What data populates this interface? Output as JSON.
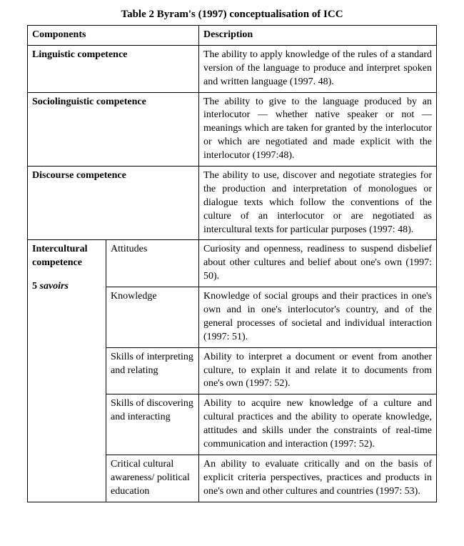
{
  "caption": "Table 2 Byram's (1997) conceptualisation of ICC",
  "headers": {
    "components": "Components",
    "description": "Description"
  },
  "rows": {
    "linguistic": {
      "name": "Linguistic competence",
      "desc": "The ability to apply knowledge of the rules of a standard version of the language to produce and interpret spoken and written language (1997. 48)."
    },
    "sociolinguistic": {
      "name": "Sociolinguistic competence",
      "desc": "The ability to give to the language produced by an interlocutor — whether native speaker or not — meanings which are taken for granted by the interlocutor or which are negotiated and made explicit with the interlocutor (1997:48)."
    },
    "discourse": {
      "name": "Discourse competence",
      "desc": "The ability to use, discover and negotiate strategies for the production and interpretation of monologues or dialogue texts which follow the conventions of the culture of an interlocutor or are negotiated as intercultural texts for particular purposes (1997: 48)."
    },
    "intercultural": {
      "name": "Intercultural competence",
      "five_label_prefix": "5 ",
      "five_label_italic": "savoirs",
      "items": {
        "attitudes": {
          "label": "Attitudes",
          "desc": "Curiosity and openness, readiness to suspend disbelief about other cultures and belief about one's own (1997: 50)."
        },
        "knowledge": {
          "label": "Knowledge",
          "desc": "Knowledge of social groups and their practices in one's own and in one's interlocutor's country, and of the general processes of societal and individual interaction (1997: 51)."
        },
        "interpreting": {
          "label": "Skills of interpreting and relating",
          "desc": "Ability to interpret a document or event from another culture, to explain it and relate it to documents from one's own (1997: 52)."
        },
        "discovering": {
          "label": "Skills of discovering and interacting",
          "desc": "Ability to acquire new knowledge of a culture and cultural practices and the ability to operate knowledge, attitudes and skills under the constraints of real-time communication and interaction (1997: 52)."
        },
        "critical": {
          "label": "Critical cultural awareness/ political education",
          "desc": "An ability to evaluate critically and on the basis of explicit criteria perspectives, practices and products in one's own and other cultures and countries (1997: 53)."
        }
      }
    }
  }
}
